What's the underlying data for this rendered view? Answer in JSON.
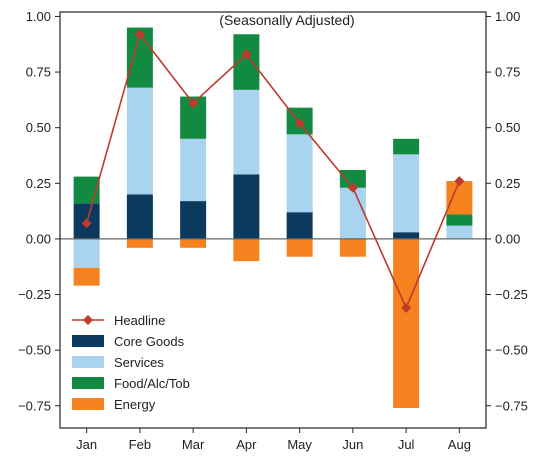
{
  "chart_data": {
    "type": "bar",
    "stacked": true,
    "subtitle": "(Seasonally Adjusted)",
    "categories": [
      "Jan",
      "Feb",
      "Mar",
      "Apr",
      "May",
      "Jun",
      "Jul",
      "Aug"
    ],
    "ylim": [
      -0.85,
      1.02
    ],
    "yticks": [
      "1.00",
      "0.75",
      "0.50",
      "0.25",
      "0.00",
      "−0.25",
      "−0.50",
      "−0.75"
    ],
    "ytick_values": [
      1.0,
      0.75,
      0.5,
      0.25,
      0.0,
      -0.25,
      -0.5,
      -0.75
    ],
    "grid": false,
    "legend_position": "lower-left",
    "series": [
      {
        "name": "Core Goods",
        "color": "#0b3a5e",
        "values": [
          0.16,
          0.2,
          0.17,
          0.29,
          0.12,
          0.0,
          0.03,
          0.0
        ]
      },
      {
        "name": "Services",
        "color": "#a9d3ef",
        "values": [
          -0.13,
          0.48,
          0.28,
          0.38,
          0.35,
          0.23,
          0.35,
          0.06
        ]
      },
      {
        "name": "Food/Alc/Tob",
        "color": "#138a42",
        "values": [
          0.12,
          0.27,
          0.19,
          0.25,
          0.12,
          0.08,
          0.07,
          0.05
        ]
      },
      {
        "name": "Energy",
        "color": "#f5821f",
        "values": [
          -0.08,
          -0.04,
          -0.04,
          -0.1,
          -0.08,
          -0.08,
          -0.76,
          0.15
        ]
      }
    ],
    "headline": {
      "name": "Headline",
      "color": "#c0392b",
      "values": [
        0.07,
        0.92,
        0.61,
        0.83,
        0.52,
        0.23,
        -0.31,
        0.26
      ]
    },
    "legend_order": [
      "Headline",
      "Core Goods",
      "Services",
      "Food/Alc/Tob",
      "Energy"
    ]
  }
}
